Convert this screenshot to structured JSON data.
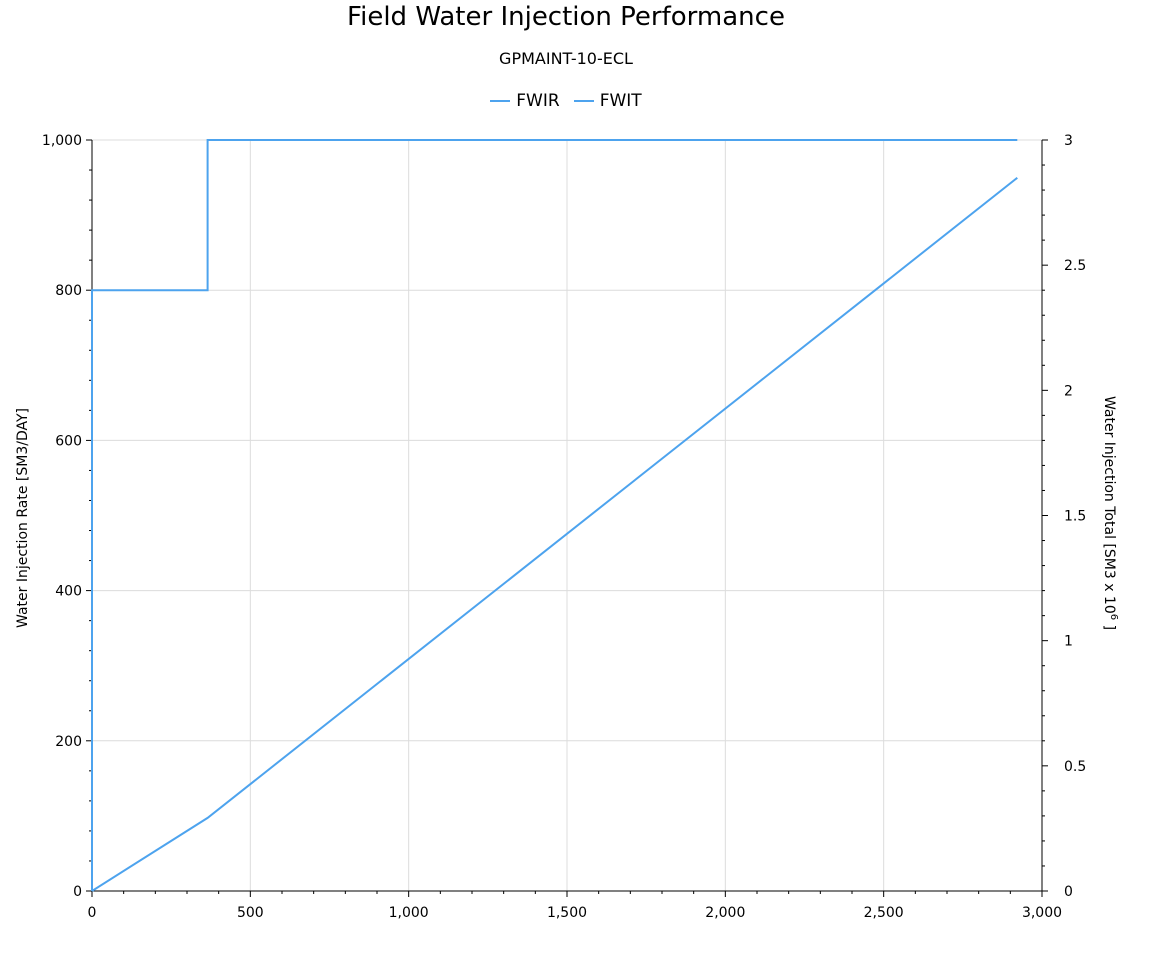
{
  "chart_data": {
    "type": "line",
    "title": "Field Water Injection Performance",
    "subtitle": "GPMAINT-10-ECL",
    "legend_position": "top-center",
    "grid": true,
    "x_axis": {
      "label": "",
      "range": [
        0,
        3000
      ],
      "ticks": [
        "0",
        "500",
        "1,000",
        "1,500",
        "2,000",
        "2,500",
        "3,000"
      ],
      "tick_values": [
        0,
        500,
        1000,
        1500,
        2000,
        2500,
        3000
      ]
    },
    "y_axis_left": {
      "label": "Water Injection Rate [SM3/DAY]",
      "range": [
        0,
        1000
      ],
      "ticks": [
        "0",
        "200",
        "400",
        "600",
        "800",
        "1,000"
      ],
      "tick_values": [
        0,
        200,
        400,
        600,
        800,
        1000
      ]
    },
    "y_axis_right": {
      "label_main": "Water Injection Total [SM3 x 10",
      "label_exp": "6",
      "label_end": " ]",
      "range": [
        0,
        3
      ],
      "ticks": [
        "0",
        "0.5",
        "1",
        "1.5",
        "2",
        "2.5",
        "3"
      ],
      "tick_values": [
        0,
        0.5,
        1,
        1.5,
        2,
        2.5,
        3
      ]
    },
    "series": [
      {
        "name": "FWIR",
        "axis": "left",
        "color": "#4da3ee",
        "x": [
          0,
          0,
          365,
          365,
          2922
        ],
        "y": [
          0,
          800,
          800,
          1000,
          1000
        ]
      },
      {
        "name": "FWIT",
        "axis": "right",
        "color": "#4da3ee",
        "x": [
          0,
          365,
          2922
        ],
        "y": [
          0,
          0.292,
          2.849
        ]
      }
    ]
  }
}
